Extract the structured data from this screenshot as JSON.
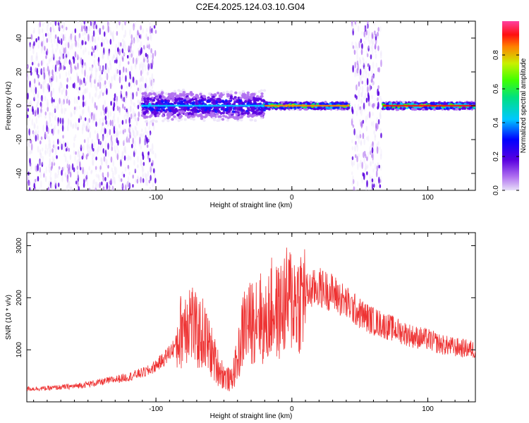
{
  "title": "C2E4.2025.124.03.10.G04",
  "chart_data": [
    {
      "type": "heatmap",
      "xlabel": "Height of straight line (km)",
      "ylabel": "Frequency (Hz)",
      "xlim": [
        -195,
        135
      ],
      "ylim": [
        -50,
        50
      ],
      "xticks": [
        -100,
        0,
        100
      ],
      "yticks": [
        -40,
        -20,
        0,
        20,
        40
      ],
      "colorbar": {
        "label": "Normalized spectral amplitude",
        "range": [
          0,
          1
        ],
        "ticks": [
          "0.0",
          "0.2",
          "0.4",
          "0.6",
          "0.8"
        ]
      },
      "features": [
        {
          "x_range": [
            -195,
            -100
          ],
          "description": "scattered noise spanning -50 to 50 Hz"
        },
        {
          "x_range": [
            -110,
            -20
          ],
          "freq_center": 0,
          "freq_halfwidth": 8,
          "peak_amplitude": 0.5
        },
        {
          "x_range": [
            -20,
            42
          ],
          "freq_center": 0,
          "freq_halfwidth": 2,
          "peak_amplitude": 0.9
        },
        {
          "x_range": [
            44,
            66
          ],
          "description": "broadband noise -50 to 50 Hz"
        },
        {
          "x_range": [
            67,
            135
          ],
          "freq_center": 0,
          "freq_halfwidth": 2,
          "peak_amplitude": 0.95
        }
      ]
    },
    {
      "type": "line",
      "xlabel": "Height of straight line (km)",
      "ylabel": "SNR (10 * v/v)",
      "xlim": [
        -195,
        135
      ],
      "ylim": [
        0,
        3250
      ],
      "xticks": [
        -100,
        0,
        100
      ],
      "yticks": [
        1000,
        2000,
        3000
      ],
      "series": [
        {
          "color": "#ee3333",
          "x": [
            -195,
            -180,
            -160,
            -140,
            -120,
            -105,
            -95,
            -85,
            -80,
            -75,
            -70,
            -65,
            -60,
            -55,
            -50,
            -45,
            -40,
            -35,
            -30,
            -25,
            -20,
            -15,
            -10,
            -5,
            0,
            5,
            10,
            20,
            25,
            30,
            40,
            50,
            60,
            70,
            80,
            90,
            100,
            110,
            120,
            135
          ],
          "y": [
            250,
            260,
            300,
            380,
            480,
            600,
            800,
            1100,
            1500,
            1650,
            1300,
            1300,
            1000,
            700,
            500,
            400,
            800,
            1500,
            1500,
            1800,
            1400,
            1800,
            1700,
            1900,
            2000,
            1950,
            2100,
            2200,
            2150,
            2100,
            1900,
            1700,
            1550,
            1450,
            1350,
            1250,
            1200,
            1100,
            1050,
            1000
          ]
        }
      ]
    }
  ]
}
